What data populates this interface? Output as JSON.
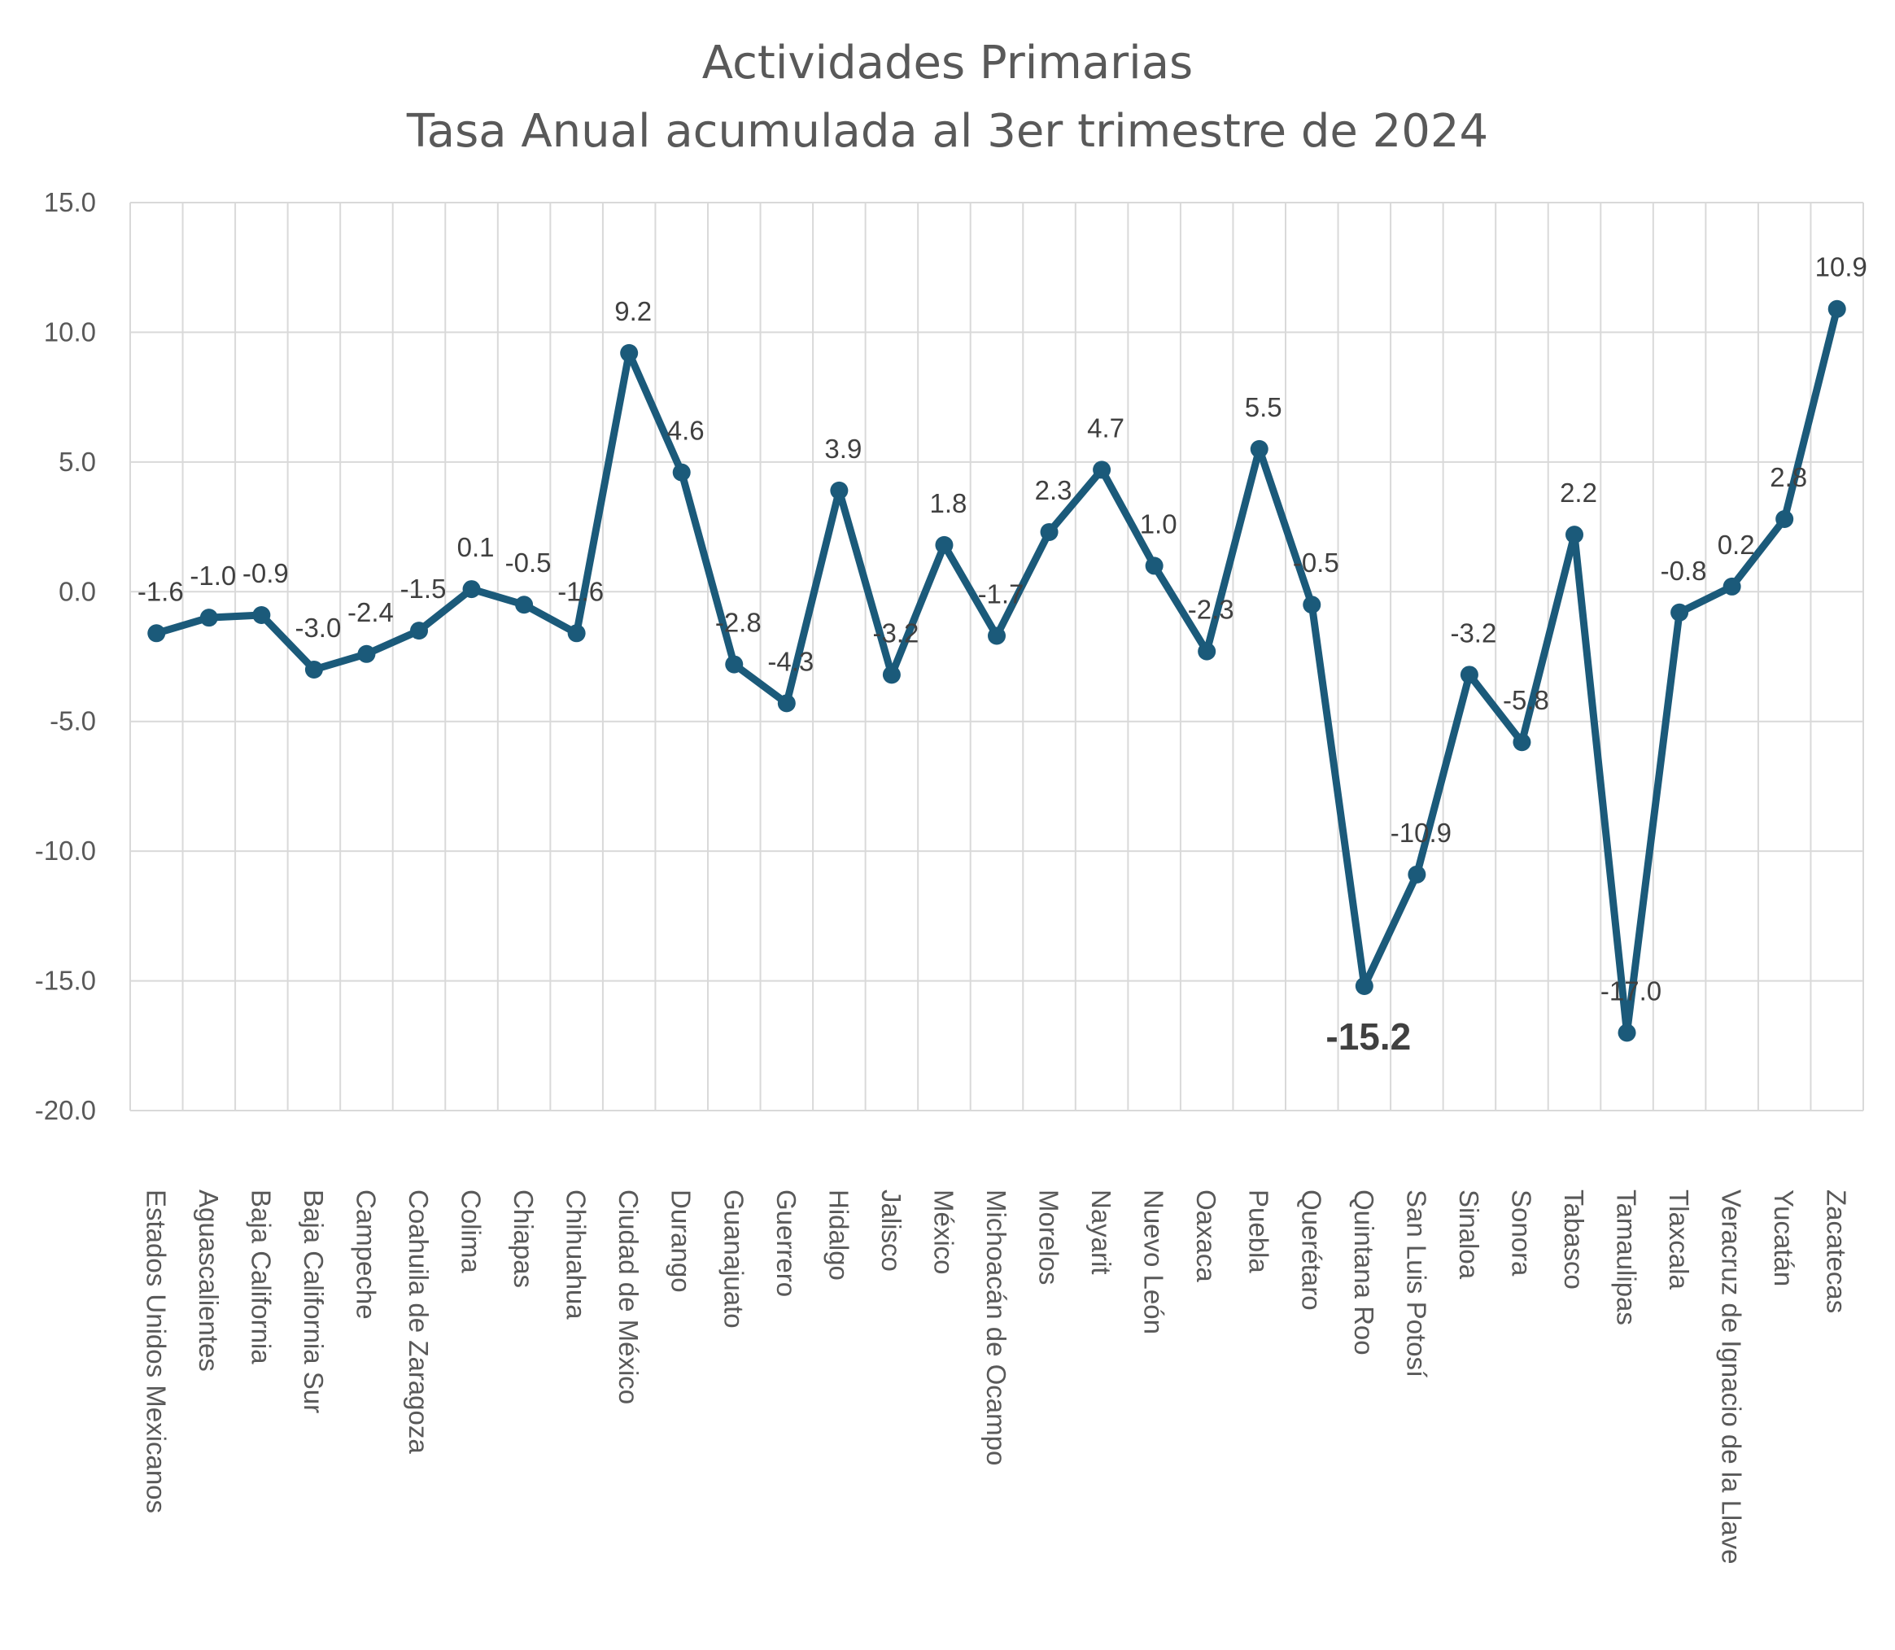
{
  "chart_data": {
    "type": "line",
    "title": [
      "Actividades Primarias",
      "Tasa Anual acumulada al 3er trimestre de 2024"
    ],
    "xlabel": "",
    "ylabel": "",
    "ylim": [
      -20,
      15
    ],
    "yticks": [
      "15.0",
      "10.0",
      "5.0",
      "0.0",
      "-5.0",
      "-10.0",
      "-15.0",
      "-20.0"
    ],
    "ytick_values": [
      15,
      10,
      5,
      0,
      -5,
      -10,
      -15,
      -20
    ],
    "grid": true,
    "legend": "none",
    "series_color": "#1B5A7A",
    "grid_color": "#D9D9D9",
    "categories": [
      "Estados Unidos Mexicanos",
      "Aguascalientes",
      "Baja California",
      "Baja California Sur",
      "Campeche",
      "Coahuila de Zaragoza",
      "Colima",
      "Chiapas",
      "Chihuahua",
      "Ciudad de México",
      "Durango",
      "Guanajuato",
      "Guerrero",
      "Hidalgo",
      "Jalisco",
      "México",
      "Michoacán de Ocampo",
      "Morelos",
      "Nayarit",
      "Nuevo León",
      "Oaxaca",
      "Puebla",
      "Querétaro",
      "Quintana Roo",
      "San Luis Potosí",
      "Sinaloa",
      "Sonora",
      "Tabasco",
      "Tamaulipas",
      "Tlaxcala",
      "Veracruz de Ignacio de la Llave",
      "Yucatán",
      "Zacatecas"
    ],
    "values": [
      -1.6,
      -1.0,
      -0.9,
      -3.0,
      -2.4,
      -1.5,
      0.1,
      -0.5,
      -1.6,
      9.2,
      4.6,
      -2.8,
      -4.3,
      3.9,
      -3.2,
      1.8,
      -1.7,
      2.3,
      4.7,
      1.0,
      -2.3,
      5.5,
      -0.5,
      -15.2,
      -10.9,
      -3.2,
      -5.8,
      2.2,
      -17.0,
      -0.8,
      0.2,
      2.8,
      10.9
    ],
    "data_labels": [
      "-1.6",
      "-1.0",
      "-0.9",
      "-3.0",
      "-2.4",
      "-1.5",
      "0.1",
      "-0.5",
      "-1.6",
      "9.2",
      "4.6",
      "-2.8",
      "-4.3",
      "3.9",
      "-3.2",
      "1.8",
      "-1.7",
      "2.3",
      "4.7",
      "1.0",
      "-2.3",
      "5.5",
      "-0.5",
      "-15.2",
      "-10.9",
      "-3.2",
      "-5.8",
      "2.2",
      "-17.0",
      "-0.8",
      "0.2",
      "2.8",
      "10.9"
    ],
    "highlighted_label_index": 23
  }
}
